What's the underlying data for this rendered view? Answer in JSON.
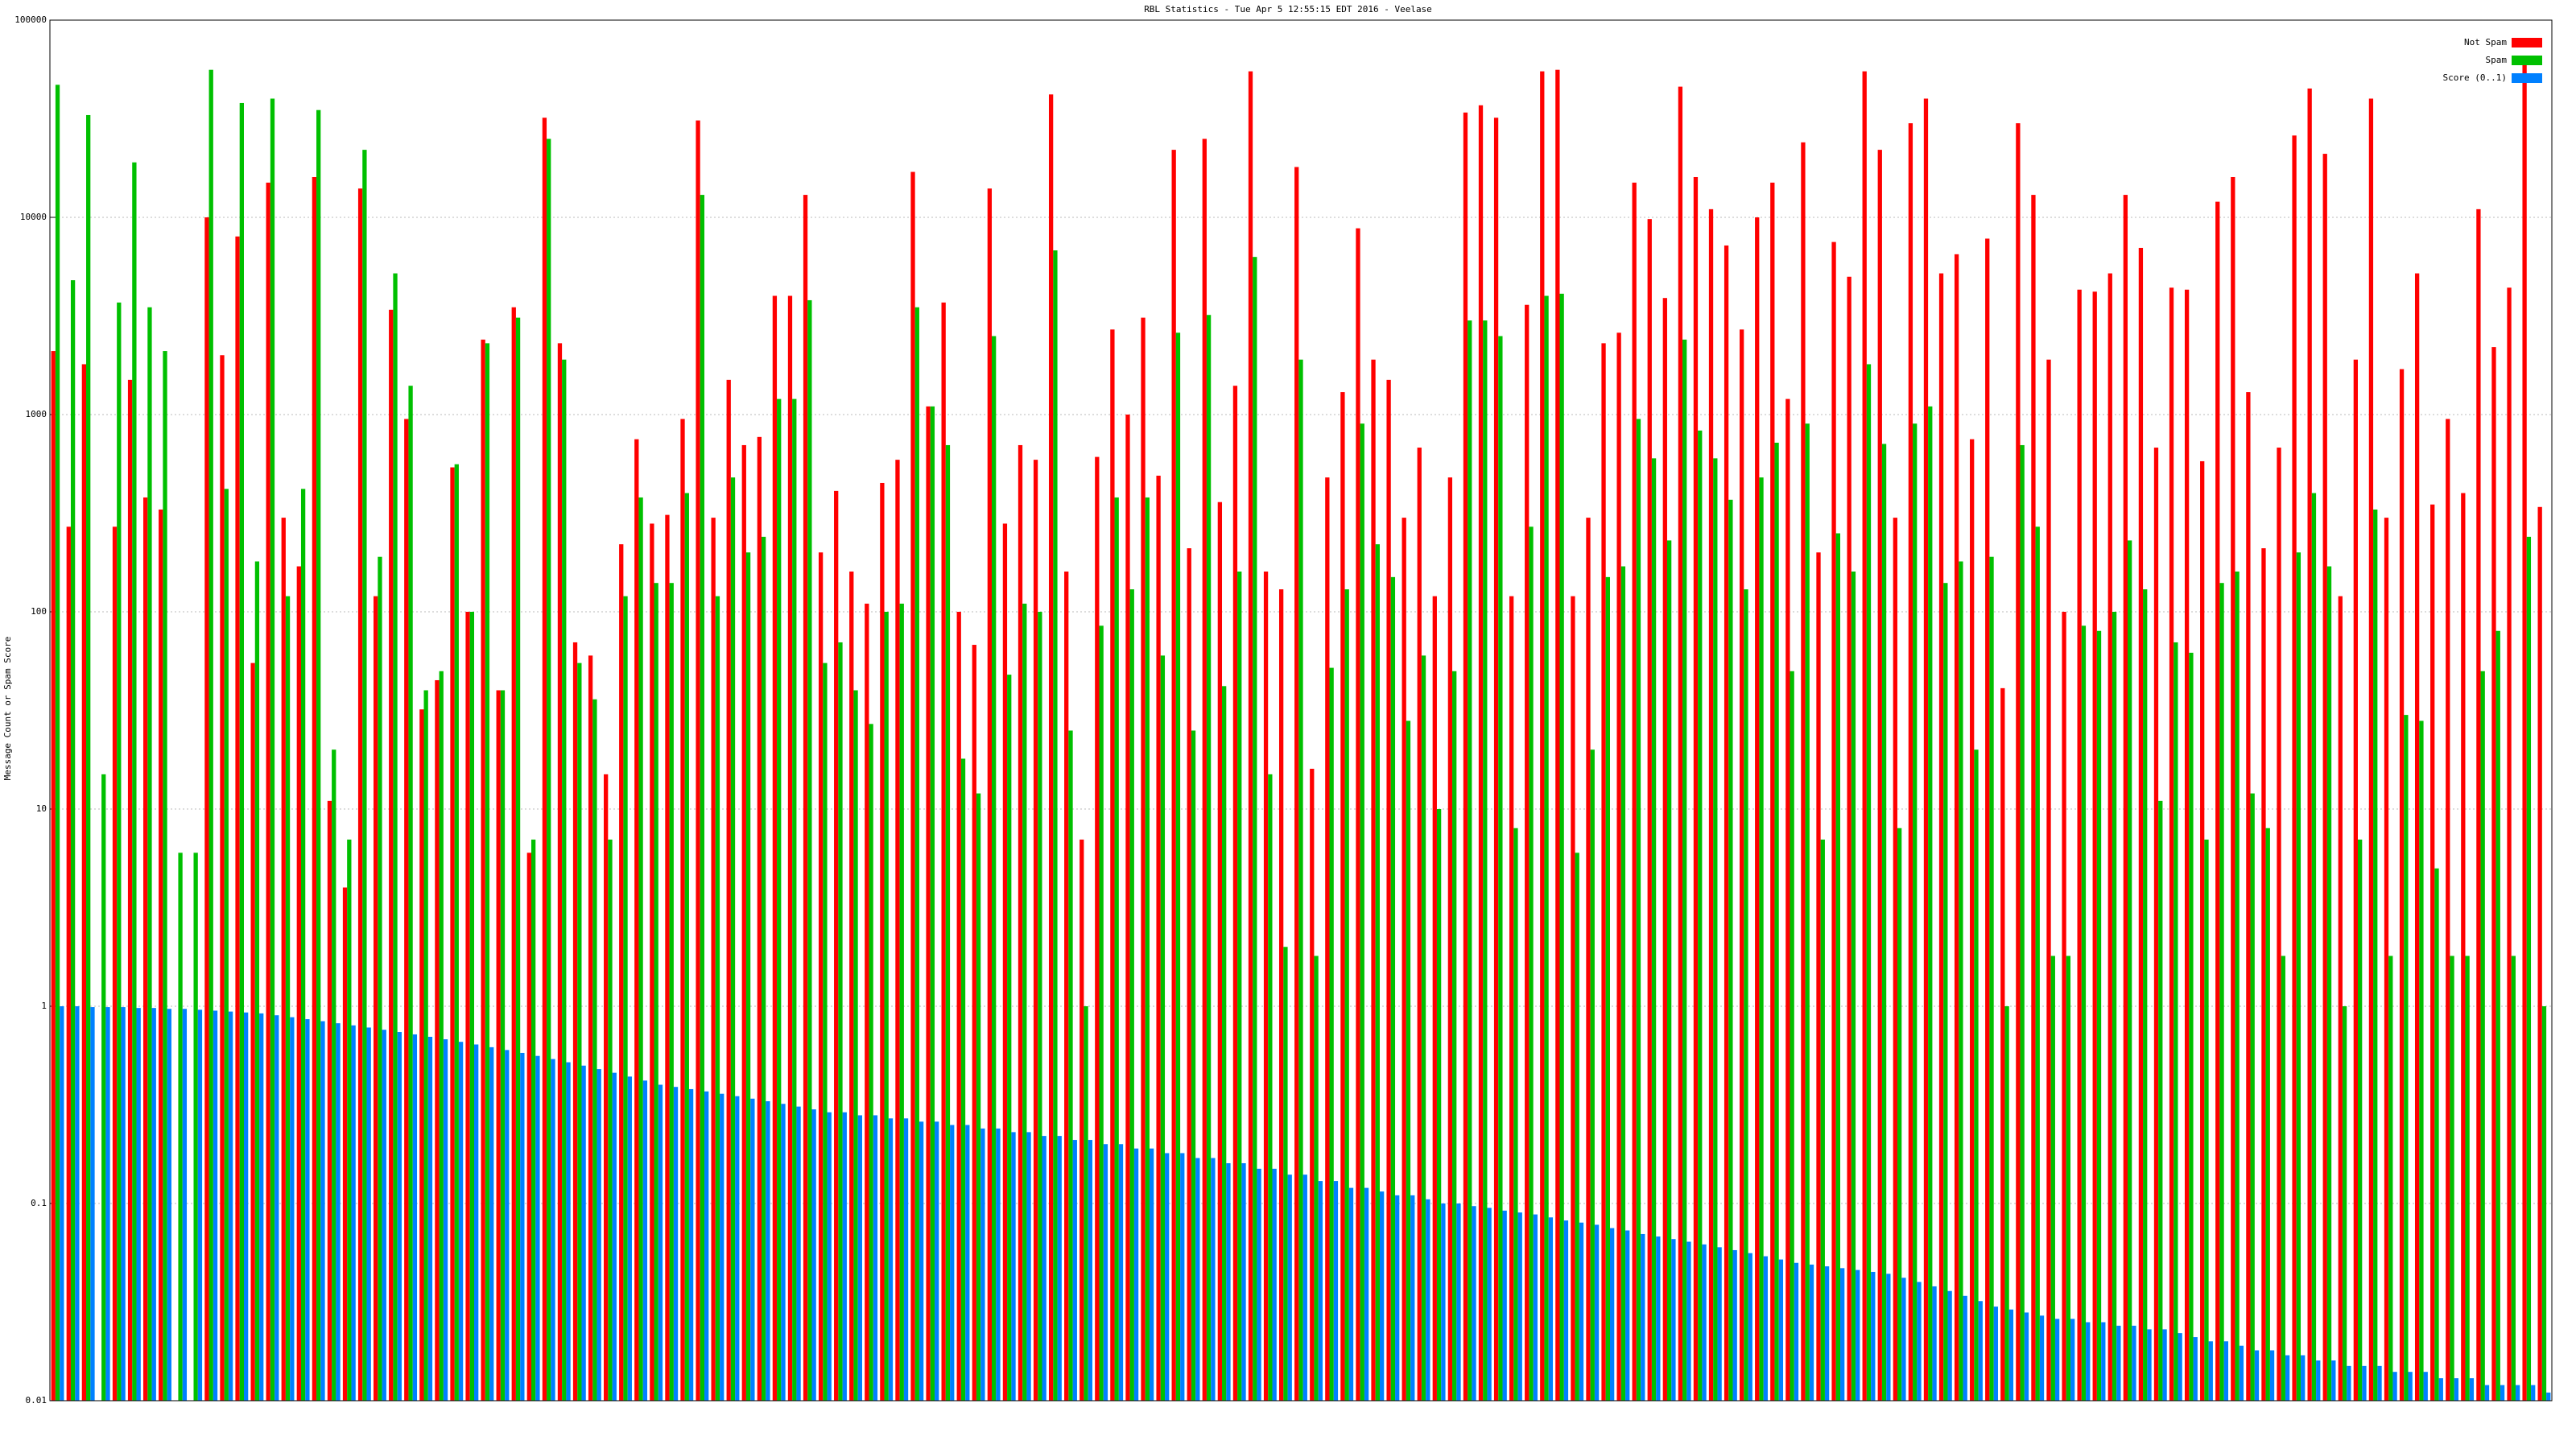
{
  "chart_data": {
    "type": "bar",
    "title": "RBL Statistics - Tue Apr 5 12:55:15 EDT 2016 - Veelase",
    "y_label": "Message Count or Spam Score",
    "log_scale": true,
    "grid": true,
    "legend": "upper right",
    "ylim": [
      0.01,
      100000
    ],
    "yticks": [
      0.01,
      0.1,
      1,
      10,
      100,
      1000,
      10000,
      100000
    ],
    "categories": [
      null,
      null,
      null,
      null,
      null,
      null,
      null,
      null,
      null,
      null,
      null,
      null,
      null,
      null,
      null,
      null,
      null,
      null,
      null,
      null,
      null,
      null,
      null,
      null,
      null,
      null,
      null,
      null,
      null,
      null,
      null,
      null,
      null,
      null,
      null,
      null,
      null,
      null,
      null,
      null,
      null,
      null,
      null,
      null,
      null,
      null,
      null,
      null,
      null,
      null,
      null,
      null,
      null,
      null,
      null,
      null,
      null,
      null,
      null,
      null,
      null,
      null,
      null,
      null,
      null,
      null,
      null,
      null,
      null,
      null,
      null,
      null,
      null,
      null,
      null,
      null,
      null,
      null,
      null,
      null,
      null,
      null,
      null,
      null,
      null,
      null,
      null,
      null,
      null,
      null,
      null,
      null,
      null,
      null,
      null,
      null,
      null,
      null,
      null,
      null,
      null,
      null,
      null,
      null,
      null,
      null,
      null,
      null,
      null,
      null,
      null,
      null,
      null,
      null,
      null,
      null,
      null,
      null,
      null,
      null,
      null,
      null,
      null,
      null,
      null,
      null,
      null,
      null,
      null,
      null,
      null,
      null,
      null,
      null,
      null,
      null,
      null,
      null,
      null,
      null,
      null,
      null,
      null,
      null,
      null,
      null,
      null,
      null,
      null,
      null,
      null,
      null,
      null,
      null,
      null,
      null,
      null,
      null,
      null,
      null,
      null,
      null,
      null
    ],
    "series": [
      {
        "name": "Not Spam",
        "color": "#ff0000",
        "values": [
          2100,
          270,
          1800,
          null,
          270,
          1500,
          380,
          330,
          null,
          null,
          10000,
          2000,
          8000,
          55,
          15000,
          300,
          170,
          16000,
          11,
          4,
          14000,
          120,
          3400,
          950,
          32,
          45,
          540,
          100,
          2400,
          40,
          3500,
          6,
          32000,
          2300,
          70,
          60,
          15,
          220,
          750,
          280,
          310,
          950,
          31000,
          300,
          1500,
          700,
          770,
          4000,
          4000,
          13000,
          200,
          410,
          160,
          110,
          450,
          590,
          17000,
          1100,
          3700,
          100,
          68,
          14000,
          280,
          700,
          590,
          42000,
          160,
          7,
          610,
          2700,
          1000,
          3100,
          490,
          22000,
          210,
          25000,
          360,
          1400,
          55000,
          160,
          130,
          18000,
          16,
          480,
          1300,
          8800,
          1900,
          1500,
          300,
          680,
          120,
          480,
          34000,
          37000,
          32000,
          120,
          3600,
          55000,
          56000,
          120,
          300,
          2300,
          2600,
          15000,
          9800,
          3900,
          46000,
          16000,
          11000,
          7200,
          2700,
          10000,
          15000,
          1200,
          24000,
          200,
          7500,
          5000,
          55000,
          22000,
          300,
          30000,
          40000,
          5200,
          6500,
          750,
          7800,
          41,
          30000,
          13000,
          1900,
          100,
          4300,
          4200,
          5200,
          13000,
          7000,
          680,
          4400,
          4300,
          580,
          12000,
          16000,
          1300,
          210,
          680,
          26000,
          45000,
          21000,
          120,
          1900,
          40000,
          300,
          1700,
          5200,
          350,
          950,
          400,
          11000,
          2200,
          4400,
          60000,
          340
        ]
      },
      {
        "name": "Spam",
        "color": "#00c000",
        "values": [
          47000,
          4800,
          33000,
          15,
          3700,
          19000,
          3500,
          2100,
          6,
          6,
          56000,
          420,
          38000,
          180,
          40000,
          120,
          420,
          35000,
          20,
          7,
          22000,
          190,
          5200,
          1400,
          40,
          50,
          560,
          100,
          2300,
          40,
          3100,
          7,
          25000,
          1900,
          55,
          36,
          7,
          120,
          380,
          140,
          140,
          400,
          13000,
          120,
          480,
          200,
          240,
          1200,
          1200,
          3800,
          55,
          70,
          40,
          27,
          100,
          110,
          3500,
          1100,
          700,
          18,
          12,
          2500,
          48,
          110,
          100,
          6800,
          25,
          1,
          85,
          380,
          130,
          380,
          60,
          2600,
          25,
          3200,
          42,
          160,
          6300,
          15,
          2,
          1900,
          1.8,
          52,
          130,
          900,
          220,
          150,
          28,
          60,
          10,
          50,
          3000,
          3000,
          2500,
          8,
          270,
          4000,
          4100,
          6,
          20,
          150,
          170,
          950,
          600,
          230,
          2400,
          830,
          600,
          370,
          130,
          480,
          720,
          50,
          900,
          7,
          250,
          160,
          1800,
          710,
          8,
          900,
          1100,
          140,
          180,
          20,
          190,
          1,
          700,
          270,
          1.8,
          1.8,
          85,
          80,
          100,
          230,
          130,
          11,
          70,
          62,
          7,
          140,
          160,
          12,
          8,
          1.8,
          200,
          400,
          170,
          1,
          7,
          330,
          1.8,
          30,
          28,
          5,
          1.8,
          1.8,
          50,
          80,
          1.8,
          240,
          1
        ]
      },
      {
        "name": "Score (0..1)",
        "color": "#0080ff",
        "values": [
          1,
          1,
          0.99,
          0.99,
          0.99,
          0.98,
          0.98,
          0.97,
          0.97,
          0.96,
          0.95,
          0.94,
          0.93,
          0.92,
          0.9,
          0.88,
          0.86,
          0.84,
          0.82,
          0.8,
          0.78,
          0.76,
          0.74,
          0.72,
          0.7,
          0.68,
          0.66,
          0.64,
          0.62,
          0.6,
          0.58,
          0.56,
          0.54,
          0.52,
          0.5,
          0.48,
          0.46,
          0.44,
          0.42,
          0.4,
          0.39,
          0.38,
          0.37,
          0.36,
          0.35,
          0.34,
          0.33,
          0.32,
          0.31,
          0.3,
          0.29,
          0.29,
          0.28,
          0.28,
          0.27,
          0.27,
          0.26,
          0.26,
          0.25,
          0.25,
          0.24,
          0.24,
          0.23,
          0.23,
          0.22,
          0.22,
          0.21,
          0.21,
          0.2,
          0.2,
          0.19,
          0.19,
          0.18,
          0.18,
          0.17,
          0.17,
          0.16,
          0.16,
          0.15,
          0.15,
          0.14,
          0.14,
          0.13,
          0.13,
          0.12,
          0.12,
          0.115,
          0.11,
          0.11,
          0.105,
          0.1,
          0.1,
          0.097,
          0.095,
          0.092,
          0.09,
          0.088,
          0.085,
          0.082,
          0.08,
          0.078,
          0.075,
          0.073,
          0.07,
          0.068,
          0.066,
          0.064,
          0.062,
          0.06,
          0.058,
          0.056,
          0.054,
          0.052,
          0.05,
          0.049,
          0.048,
          0.047,
          0.046,
          0.045,
          0.044,
          0.042,
          0.04,
          0.038,
          0.036,
          0.034,
          0.032,
          0.03,
          0.029,
          0.028,
          0.027,
          0.026,
          0.026,
          0.025,
          0.025,
          0.024,
          0.024,
          0.023,
          0.023,
          0.022,
          0.021,
          0.02,
          0.02,
          0.019,
          0.018,
          0.018,
          0.017,
          0.017,
          0.016,
          0.016,
          0.015,
          0.015,
          0.015,
          0.014,
          0.014,
          0.014,
          0.013,
          0.013,
          0.013,
          0.012,
          0.012,
          0.012,
          0.012,
          0.011
        ]
      }
    ]
  }
}
